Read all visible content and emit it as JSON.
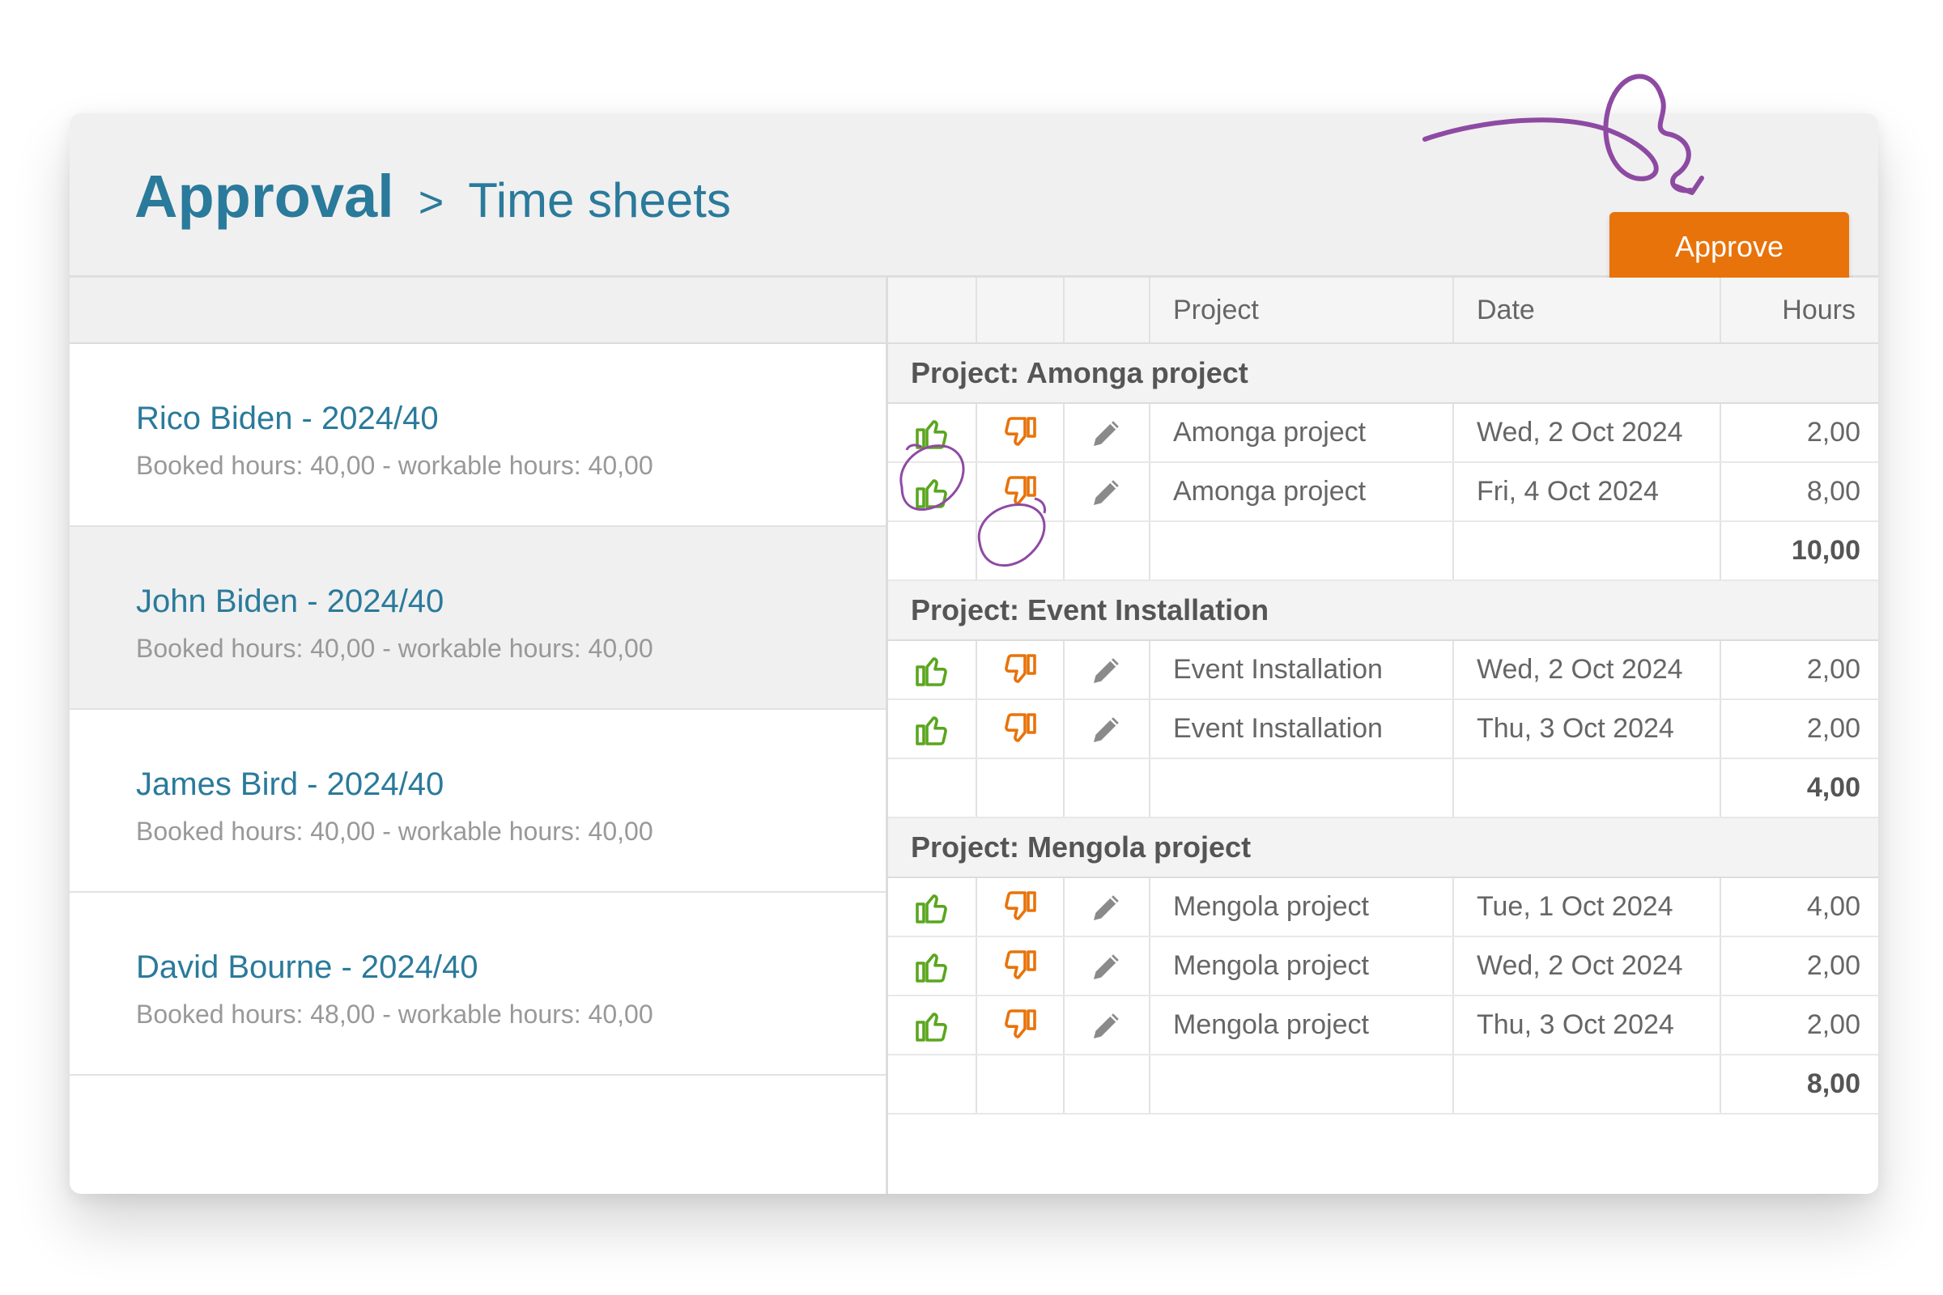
{
  "header": {
    "title": "Approval",
    "separator": ">",
    "subtitle": "Time sheets",
    "approve_label": "Approve"
  },
  "employees": [
    {
      "name": "Rico Biden - 2024/40",
      "hours": "Booked hours: 40,00 - workable hours: 40,00"
    },
    {
      "name": "John Biden - 2024/40",
      "hours": "Booked hours: 40,00 - workable hours: 40,00"
    },
    {
      "name": "James Bird - 2024/40",
      "hours": "Booked hours: 40,00 - workable hours: 40,00"
    },
    {
      "name": "David Bourne - 2024/40",
      "hours": "Booked hours: 48,00 - workable hours: 40,00"
    }
  ],
  "columns": {
    "project": "Project",
    "date": "Date",
    "hours": "Hours"
  },
  "groups": [
    {
      "title": "Project: Amonga project",
      "rows": [
        {
          "project": "Amonga project",
          "date": "Wed, 2 Oct 2024",
          "hours": "2,00"
        },
        {
          "project": "Amonga project",
          "date": "Fri, 4 Oct 2024",
          "hours": "8,00"
        }
      ],
      "total": "10,00"
    },
    {
      "title": "Project: Event Installation",
      "rows": [
        {
          "project": "Event Installation",
          "date": "Wed, 2 Oct 2024",
          "hours": "2,00"
        },
        {
          "project": "Event Installation",
          "date": "Thu, 3 Oct 2024",
          "hours": "2,00"
        }
      ],
      "total": "4,00"
    },
    {
      "title": "Project: Mengola project",
      "rows": [
        {
          "project": "Mengola project",
          "date": "Tue, 1 Oct 2024",
          "hours": "4,00"
        },
        {
          "project": "Mengola project",
          "date": "Wed, 2 Oct 2024",
          "hours": "2,00"
        },
        {
          "project": "Mengola project",
          "date": "Thu, 3 Oct 2024",
          "hours": "2,00"
        }
      ],
      "total": "8,00"
    }
  ],
  "icons": {
    "approve": "thumbs-up-icon",
    "reject": "thumbs-down-icon",
    "edit": "pencil-icon"
  },
  "colors": {
    "accent": "#2a7a9b",
    "button": "#e8730a",
    "approve": "#5aa61e",
    "reject": "#e8730a",
    "annotation": "#8e4aa3"
  }
}
